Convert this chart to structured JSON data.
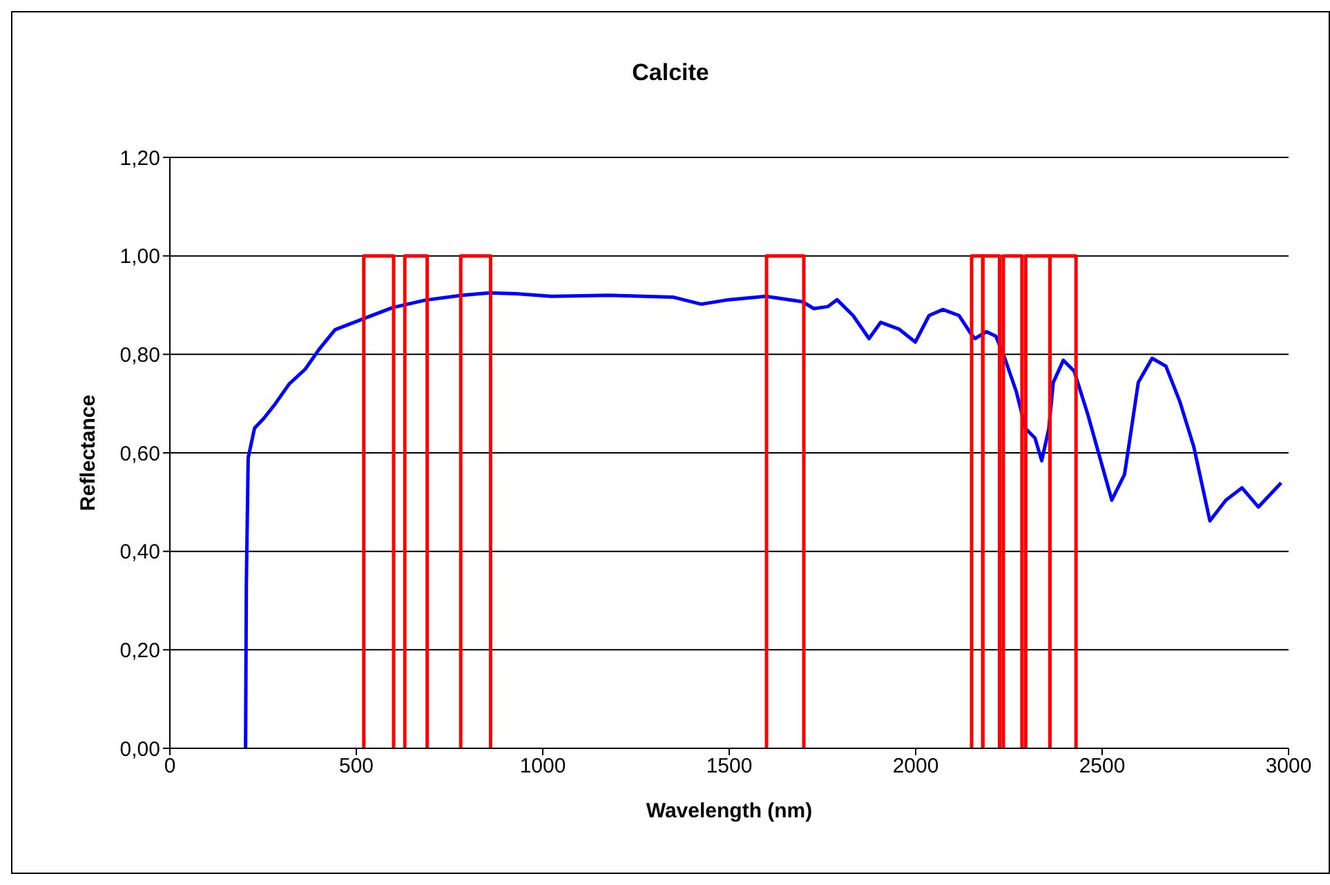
{
  "chart_data": {
    "type": "line",
    "title": "Calcite",
    "xlabel": "Wavelength (nm)",
    "ylabel": "Reflectance",
    "xlim": [
      0,
      3000
    ],
    "xticks": [
      0,
      500,
      1000,
      1500,
      2000,
      2500,
      3000
    ],
    "ylim": [
      0,
      1.2
    ],
    "yticks": [
      {
        "value": 0,
        "label": "0,00"
      },
      {
        "value": 0.2,
        "label": "0,20"
      },
      {
        "value": 0.4,
        "label": "0,40"
      },
      {
        "value": 0.6,
        "label": "0,60"
      },
      {
        "value": 0.8,
        "label": "0,80"
      },
      {
        "value": 1.0,
        "label": "1,00"
      },
      {
        "value": 1.2,
        "label": "1,20"
      }
    ],
    "grid": "y",
    "legend": false,
    "marker": "none",
    "line_style": "solid",
    "series": [
      {
        "color": "#0000ff",
        "x": [
          203,
          205,
          210,
          227,
          252,
          283,
          320,
          363,
          400,
          443,
          511,
          597,
          684,
          783,
          857,
          931,
          1023,
          1178,
          1351,
          1425,
          1499,
          1598,
          1696,
          1727,
          1764,
          1789,
          1832,
          1875,
          1906,
          1956,
          1999,
          2036,
          2073,
          2116,
          2149,
          2159,
          2190,
          2215,
          2240,
          2270,
          2295,
          2320,
          2338,
          2357,
          2369,
          2396,
          2425,
          2462,
          2493,
          2526,
          2560,
          2573,
          2597,
          2634,
          2671,
          2708,
          2746,
          2789,
          2832,
          2875,
          2919,
          2980
        ],
        "values": [
          0,
          0.33,
          0.59,
          0.65,
          0.67,
          0.7,
          0.74,
          0.77,
          0.81,
          0.85,
          0.87,
          0.895,
          0.91,
          0.92,
          0.925,
          0.923,
          0.918,
          0.92,
          0.916,
          0.902,
          0.911,
          0.918,
          0.907,
          0.893,
          0.897,
          0.911,
          0.879,
          0.832,
          0.865,
          0.851,
          0.825,
          0.879,
          0.891,
          0.879,
          0.841,
          0.832,
          0.846,
          0.837,
          0.79,
          0.724,
          0.649,
          0.63,
          0.584,
          0.649,
          0.743,
          0.788,
          0.766,
          0.677,
          0.593,
          0.504,
          0.556,
          0.621,
          0.743,
          0.792,
          0.776,
          0.705,
          0.612,
          0.462,
          0.504,
          0.529,
          0.49,
          0.539
        ]
      },
      {
        "color": "#ff0000",
        "x": [
          520,
          520,
          600,
          600
        ],
        "values": [
          0,
          1,
          1,
          0
        ]
      },
      {
        "color": "#ff0000",
        "x": [
          630,
          630,
          690,
          690
        ],
        "values": [
          0,
          1,
          1,
          0
        ]
      },
      {
        "color": "#ff0000",
        "x": [
          780,
          780,
          860,
          860
        ],
        "values": [
          0,
          1,
          1,
          0
        ]
      },
      {
        "color": "#ff0000",
        "x": [
          1600,
          1600,
          1700,
          1700
        ],
        "values": [
          0,
          1,
          1,
          0
        ]
      },
      {
        "color": "#ff0000",
        "x": [
          2150,
          2150,
          2180,
          2180
        ],
        "values": [
          0,
          1,
          1,
          0
        ]
      },
      {
        "color": "#ff0000",
        "x": [
          2180,
          2180,
          2225,
          2225
        ],
        "values": [
          0,
          1,
          1,
          0
        ]
      },
      {
        "color": "#ff0000",
        "x": [
          2235,
          2235,
          2285,
          2285
        ],
        "values": [
          0,
          1,
          1,
          0
        ]
      },
      {
        "color": "#ff0000",
        "x": [
          2295,
          2295,
          2360,
          2360
        ],
        "values": [
          0,
          1,
          1,
          0
        ]
      },
      {
        "color": "#ff0000",
        "x": [
          2360,
          2360,
          2430,
          2430
        ],
        "values": [
          0,
          1,
          1,
          0
        ]
      }
    ]
  }
}
